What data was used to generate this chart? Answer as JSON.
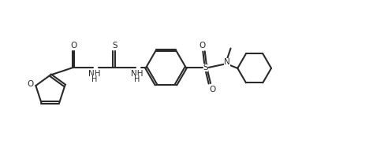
{
  "background_color": "#ffffff",
  "line_color": "#2a2a2a",
  "line_width": 1.5,
  "fig_width": 4.87,
  "fig_height": 1.96,
  "dpi": 100,
  "font_size": 7.5,
  "xlim": [
    0,
    10
  ],
  "ylim": [
    0,
    4
  ]
}
